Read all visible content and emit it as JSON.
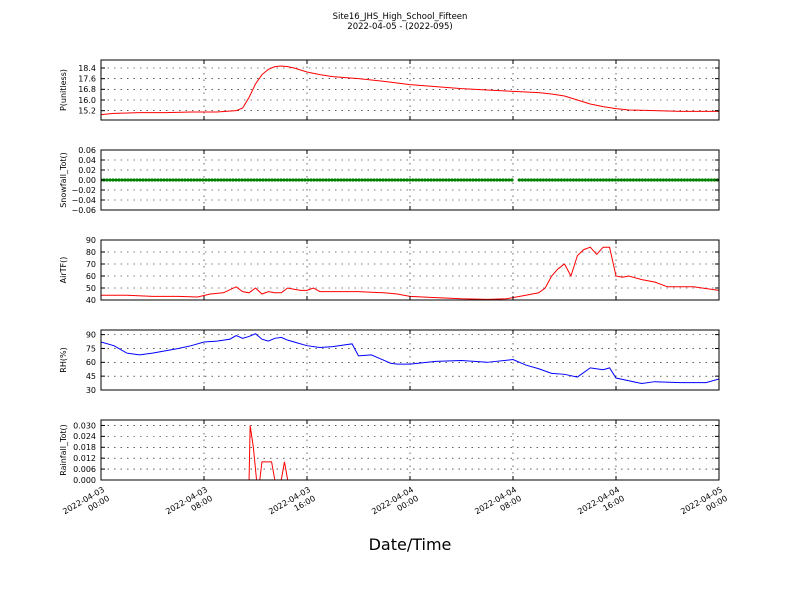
{
  "title": {
    "line1": "Site16_JHS_High_School_Fifteen",
    "line2": "2022-04-05 - (2022-095)"
  },
  "x_axis": {
    "label": "Date/Time",
    "range": [
      "2022-04-03 00:00",
      "2022-04-05 00:00"
    ],
    "ticks": [
      {
        "value": "2022-04-03 00:00",
        "line1": "2022-04-03",
        "line2": "00:00"
      },
      {
        "value": "2022-04-03 08:00",
        "line1": "2022-04-03",
        "line2": "08:00"
      },
      {
        "value": "2022-04-03 16:00",
        "line1": "2022-04-03",
        "line2": "16:00"
      },
      {
        "value": "2022-04-04 00:00",
        "line1": "2022-04-04",
        "line2": "00:00"
      },
      {
        "value": "2022-04-04 08:00",
        "line1": "2022-04-04",
        "line2": "08:00"
      },
      {
        "value": "2022-04-04 16:00",
        "line1": "2022-04-04",
        "line2": "16:00"
      },
      {
        "value": "2022-04-05 00:00",
        "line1": "2022-04-05",
        "line2": "00:00"
      }
    ]
  },
  "chart_data": [
    {
      "type": "line",
      "ylabel": "P(unitless)",
      "ylim": [
        14.5,
        19.0
      ],
      "yticks": [
        15.2,
        16.0,
        16.8,
        17.6,
        18.4
      ],
      "ytick_labels": [
        "15.2",
        "16.0",
        "16.8",
        "17.6",
        "18.4"
      ],
      "grid": true,
      "color": "#ff0000",
      "marker": "line",
      "x": [
        "2022-04-03 00:00",
        "2022-04-03 01:00",
        "2022-04-03 03:00",
        "2022-04-03 05:00",
        "2022-04-03 07:00",
        "2022-04-03 09:00",
        "2022-04-03 10:30",
        "2022-04-03 11:00",
        "2022-04-03 11:30",
        "2022-04-03 12:00",
        "2022-04-03 12:30",
        "2022-04-03 13:00",
        "2022-04-03 13:30",
        "2022-04-03 14:00",
        "2022-04-03 14:30",
        "2022-04-03 15:00",
        "2022-04-03 16:00",
        "2022-04-03 17:00",
        "2022-04-03 18:00",
        "2022-04-03 20:00",
        "2022-04-03 22:00",
        "2022-04-04 00:00",
        "2022-04-04 02:00",
        "2022-04-04 04:00",
        "2022-04-04 06:00",
        "2022-04-04 08:00",
        "2022-04-04 10:00",
        "2022-04-04 11:00",
        "2022-04-04 12:00",
        "2022-04-04 13:00",
        "2022-04-04 14:00",
        "2022-04-04 15:00",
        "2022-04-04 16:00",
        "2022-04-04 17:00",
        "2022-04-04 19:00",
        "2022-04-04 21:00",
        "2022-04-04 23:00",
        "2022-04-05 00:00"
      ],
      "y": [
        14.9,
        15.0,
        15.05,
        15.05,
        15.1,
        15.1,
        15.2,
        15.4,
        16.2,
        17.2,
        17.9,
        18.3,
        18.5,
        18.55,
        18.5,
        18.4,
        18.1,
        17.9,
        17.75,
        17.6,
        17.4,
        17.15,
        17.0,
        16.85,
        16.75,
        16.65,
        16.55,
        16.45,
        16.3,
        16.0,
        15.7,
        15.5,
        15.35,
        15.25,
        15.2,
        15.15,
        15.15,
        15.15
      ]
    },
    {
      "type": "scatter",
      "ylabel": "Snowfall_Tot()",
      "ylim": [
        -0.06,
        0.06
      ],
      "yticks": [
        -0.06,
        -0.04,
        -0.02,
        0.0,
        0.02,
        0.04,
        0.06
      ],
      "ytick_labels": [
        "−0.06",
        "−0.04",
        "−0.02",
        "0.00",
        "0.02",
        "0.04",
        "0.06"
      ],
      "grid": true,
      "color": "#008000",
      "marker": "dots",
      "x_ranges": [
        [
          "2022-04-03 00:00",
          "2022-04-04 08:00"
        ],
        [
          "2022-04-04 08:30",
          "2022-04-05 00:00"
        ]
      ],
      "value": 0.0
    },
    {
      "type": "line",
      "ylabel": "AirTF()",
      "ylim": [
        40,
        90
      ],
      "yticks": [
        40,
        50,
        60,
        70,
        80,
        90
      ],
      "ytick_labels": [
        "40",
        "50",
        "60",
        "70",
        "80",
        "90"
      ],
      "grid": true,
      "color": "#ff0000",
      "marker": "line",
      "x": [
        "2022-04-03 00:00",
        "2022-04-03 02:00",
        "2022-04-03 04:00",
        "2022-04-03 06:00",
        "2022-04-03 07:30",
        "2022-04-03 08:30",
        "2022-04-03 09:30",
        "2022-04-03 10:30",
        "2022-04-03 11:00",
        "2022-04-03 11:30",
        "2022-04-03 12:00",
        "2022-04-03 12:30",
        "2022-04-03 13:00",
        "2022-04-03 13:30",
        "2022-04-03 14:00",
        "2022-04-03 14:30",
        "2022-04-03 15:00",
        "2022-04-03 15:30",
        "2022-04-03 16:00",
        "2022-04-03 16:30",
        "2022-04-03 17:00",
        "2022-04-03 17:30",
        "2022-04-03 18:00",
        "2022-04-03 20:00",
        "2022-04-03 22:00",
        "2022-04-03 23:00",
        "2022-04-04 00:00",
        "2022-04-04 02:00",
        "2022-04-04 04:00",
        "2022-04-04 06:00",
        "2022-04-04 07:30",
        "2022-04-04 09:00",
        "2022-04-04 10:00",
        "2022-04-04 10:30",
        "2022-04-04 11:00",
        "2022-04-04 11:30",
        "2022-04-04 12:00",
        "2022-04-04 12:30",
        "2022-04-04 13:00",
        "2022-04-04 13:30",
        "2022-04-04 14:00",
        "2022-04-04 14:30",
        "2022-04-04 15:00",
        "2022-04-04 15:30",
        "2022-04-04 16:00",
        "2022-04-04 16:30",
        "2022-04-04 17:00",
        "2022-04-04 18:00",
        "2022-04-04 19:00",
        "2022-04-04 20:00",
        "2022-04-04 22:00",
        "2022-04-05 00:00"
      ],
      "y": [
        44,
        44,
        43,
        43,
        42.5,
        45,
        46,
        51,
        47,
        46,
        50,
        45,
        47,
        46,
        46,
        50,
        49,
        48,
        48,
        50,
        47,
        47,
        47,
        47,
        46,
        45,
        43,
        42,
        41,
        40.5,
        41,
        44,
        46,
        50,
        60,
        66,
        70,
        60,
        77,
        82,
        84,
        78,
        84,
        84,
        60,
        59,
        60,
        57,
        55,
        51,
        51,
        48
      ]
    },
    {
      "type": "line",
      "ylabel": "RH(%)",
      "ylim": [
        30,
        95
      ],
      "yticks": [
        30,
        45,
        60,
        75,
        90
      ],
      "ytick_labels": [
        "30",
        "45",
        "60",
        "75",
        "90"
      ],
      "grid": true,
      "color": "#0000ff",
      "marker": "line",
      "x": [
        "2022-04-03 00:00",
        "2022-04-03 01:00",
        "2022-04-03 02:00",
        "2022-04-03 03:00",
        "2022-04-03 04:00",
        "2022-04-03 06:00",
        "2022-04-03 07:00",
        "2022-04-03 08:00",
        "2022-04-03 09:00",
        "2022-04-03 10:00",
        "2022-04-03 10:30",
        "2022-04-03 11:00",
        "2022-04-03 11:30",
        "2022-04-03 12:00",
        "2022-04-03 12:30",
        "2022-04-03 13:00",
        "2022-04-03 13:30",
        "2022-04-03 14:00",
        "2022-04-03 14:30",
        "2022-04-03 15:00",
        "2022-04-03 16:00",
        "2022-04-03 17:00",
        "2022-04-03 18:00",
        "2022-04-03 19:00",
        "2022-04-03 19:30",
        "2022-04-03 20:00",
        "2022-04-03 21:00",
        "2022-04-03 22:00",
        "2022-04-03 22:30",
        "2022-04-03 23:00",
        "2022-04-04 00:00",
        "2022-04-04 02:00",
        "2022-04-04 04:00",
        "2022-04-04 06:00",
        "2022-04-04 08:00",
        "2022-04-04 09:00",
        "2022-04-04 10:00",
        "2022-04-04 11:00",
        "2022-04-04 12:00",
        "2022-04-04 13:00",
        "2022-04-04 14:00",
        "2022-04-04 15:00",
        "2022-04-04 15:30",
        "2022-04-04 16:00",
        "2022-04-04 17:00",
        "2022-04-04 18:00",
        "2022-04-04 19:00",
        "2022-04-04 21:00",
        "2022-04-04 23:00",
        "2022-04-05 00:00"
      ],
      "y": [
        82,
        78,
        70,
        68,
        70,
        75,
        78,
        82,
        83,
        85,
        89,
        86,
        88,
        91,
        85,
        83,
        86,
        87,
        84,
        82,
        78,
        76,
        77,
        79,
        80,
        67,
        68,
        62,
        59,
        58,
        58,
        61,
        62,
        60,
        63,
        57,
        53,
        48,
        47,
        44,
        54,
        52,
        54,
        43,
        40,
        37,
        39,
        38,
        38,
        42
      ]
    },
    {
      "type": "line",
      "ylabel": "Rainfall_Tot()",
      "ylim": [
        0.0,
        0.033
      ],
      "yticks": [
        0.0,
        0.006,
        0.012,
        0.018,
        0.024,
        0.03
      ],
      "ytick_labels": [
        "0.000",
        "0.006",
        "0.012",
        "0.018",
        "0.024",
        "0.030"
      ],
      "grid": true,
      "color": "#ff0000",
      "marker": "line",
      "x": [
        "2022-04-03 00:00",
        "2022-04-03 11:30",
        "2022-04-03 11:35",
        "2022-04-03 11:50",
        "2022-04-03 12:05",
        "2022-04-03 12:20",
        "2022-04-03 12:30",
        "2022-04-03 13:00",
        "2022-04-03 13:15",
        "2022-04-03 13:30",
        "2022-04-03 13:45",
        "2022-04-03 14:00",
        "2022-04-03 14:15",
        "2022-04-03 14:30",
        "2022-04-03 14:45",
        "2022-04-05 00:00"
      ],
      "y": [
        0.0,
        0.0,
        0.03,
        0.018,
        0.0,
        0.0,
        0.01,
        0.01,
        0.01,
        0.0,
        0.0,
        0.0,
        0.01,
        0.0,
        0.0,
        0.0
      ]
    }
  ]
}
